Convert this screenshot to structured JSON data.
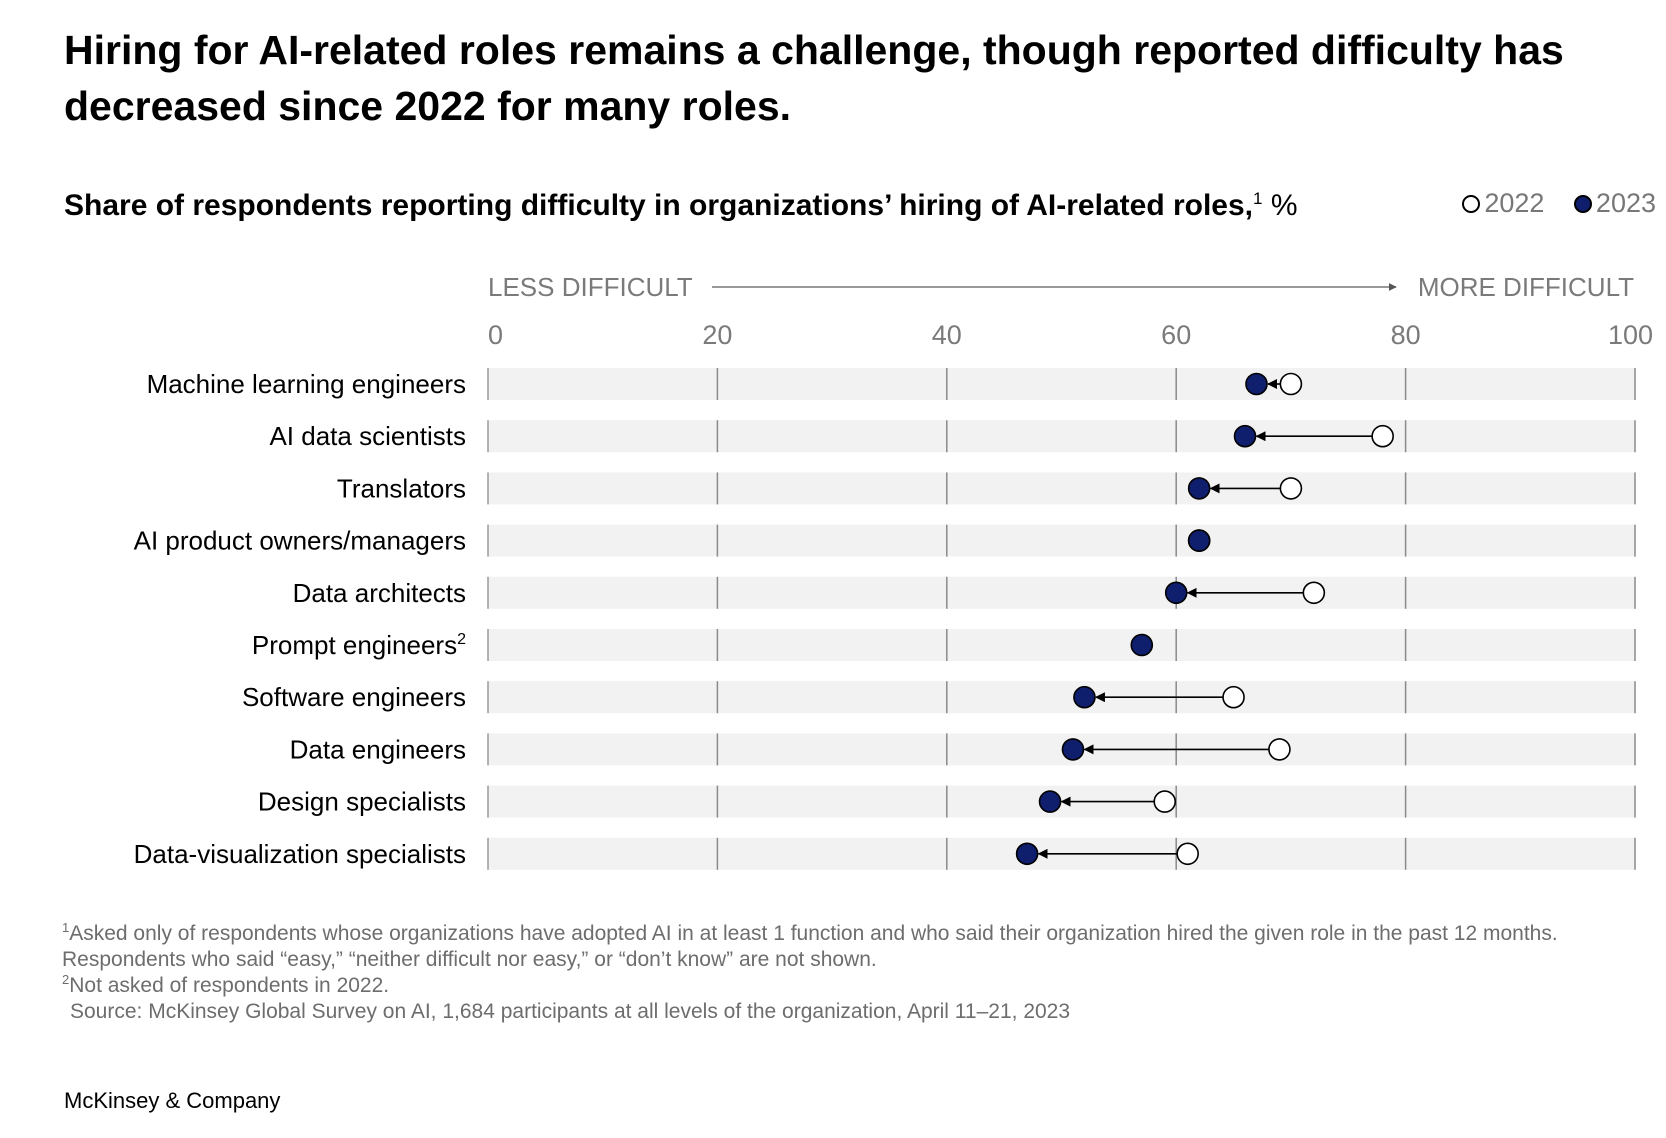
{
  "title": "Hiring for AI-related roles remains a challenge, though reported difficulty has decreased since 2022 for many roles.",
  "subtitle": "Share of respondents reporting difficulty in organizations’ hiring of AI-related roles,",
  "subtitle_sup": "1",
  "subtitle_unit": " %",
  "legend": {
    "y2022": "2022",
    "y2023": "2023"
  },
  "colors": {
    "dot_2023": "#0f1f6e",
    "dot_2022": "#ffffff",
    "row_band": "#f2f2f2",
    "gridline": "#8a8a8a",
    "axis_text": "#7a7a7a"
  },
  "chart_data": {
    "type": "dumbbell",
    "direction_labels": {
      "left": "LESS DIFFICULT",
      "right": "MORE DIFFICULT"
    },
    "xlim": [
      0,
      100
    ],
    "xticks": [
      0,
      20,
      40,
      60,
      80,
      100
    ],
    "grid": true,
    "legend_position": "top-right",
    "categories": [
      {
        "label": "Machine learning engineers",
        "sup": "",
        "y2022": 70,
        "y2023": 67
      },
      {
        "label": "AI data scientists",
        "sup": "",
        "y2022": 78,
        "y2023": 66
      },
      {
        "label": "Translators",
        "sup": "",
        "y2022": 70,
        "y2023": 62
      },
      {
        "label": "AI product owners/managers",
        "sup": "",
        "y2022": 62,
        "y2023": 62
      },
      {
        "label": "Data architects",
        "sup": "",
        "y2022": 72,
        "y2023": 60
      },
      {
        "label": "Prompt engineers",
        "sup": "2",
        "y2022": null,
        "y2023": 57
      },
      {
        "label": "Software engineers",
        "sup": "",
        "y2022": 65,
        "y2023": 52
      },
      {
        "label": "Data engineers",
        "sup": "",
        "y2022": 69,
        "y2023": 51
      },
      {
        "label": "Design specialists",
        "sup": "",
        "y2022": 59,
        "y2023": 49
      },
      {
        "label": "Data-visualization specialists",
        "sup": "",
        "y2022": 61,
        "y2023": 47
      }
    ]
  },
  "footnotes": {
    "note1_sup": "1",
    "note1": "Asked only of respondents whose organizations have adopted AI in at least 1 function and who said their organization hired the given role in the past 12 months. Respondents who said “easy,” “neither difficult nor easy,” or “don’t know” are not shown.",
    "note2_sup": "2",
    "note2": "Not asked of respondents in 2022.",
    "source": "Source: McKinsey Global Survey on AI, 1,684 participants at all levels of the organization, April 11–21, 2023"
  },
  "brand": "McKinsey & Company"
}
